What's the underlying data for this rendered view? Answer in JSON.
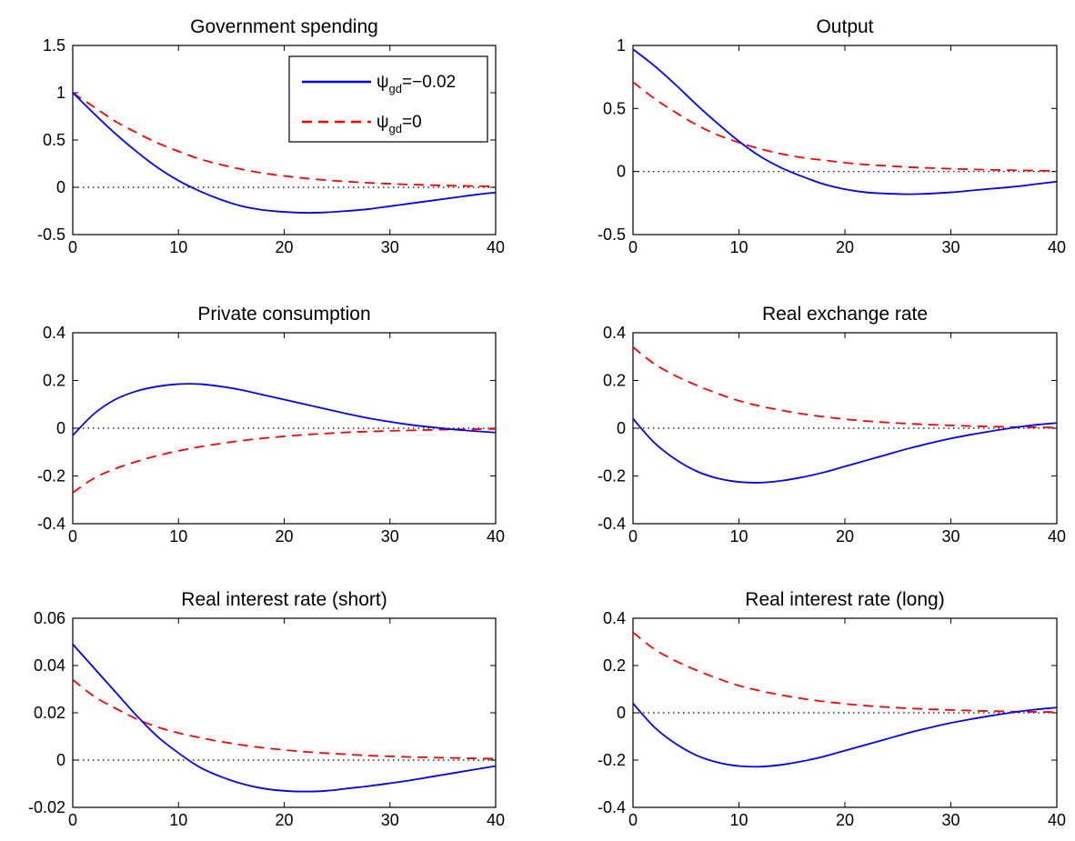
{
  "chart_data": [
    {
      "type": "line",
      "title": "Government spending",
      "xlim": [
        0,
        40
      ],
      "ylim": [
        -0.5,
        1.5
      ],
      "xticks": [
        "0",
        "10",
        "20",
        "30",
        "40"
      ],
      "yticks": [
        "-0.5",
        "0",
        "0.5",
        "1",
        "1.5"
      ],
      "x": [
        0,
        2,
        4,
        6,
        8,
        10,
        12,
        14,
        16,
        18,
        20,
        22,
        24,
        26,
        28,
        30,
        32,
        34,
        36,
        38,
        40
      ],
      "zero_line": true,
      "legend": {
        "position": "top-right"
      },
      "series": [
        {
          "legend_main": "ψ",
          "legend_sub": "gd",
          "legend_value": "=−0.02",
          "color": "#0000ff",
          "dash": "solid",
          "values": [
            1.0,
            0.78,
            0.57,
            0.38,
            0.21,
            0.07,
            -0.04,
            -0.13,
            -0.2,
            -0.24,
            -0.26,
            -0.27,
            -0.265,
            -0.25,
            -0.23,
            -0.2,
            -0.17,
            -0.14,
            -0.11,
            -0.08,
            -0.055
          ]
        },
        {
          "legend_main": "ψ",
          "legend_sub": "gd",
          "legend_value": "=0",
          "color": "#ff0000",
          "dash": "dashed",
          "values": [
            1.0,
            0.85,
            0.7,
            0.58,
            0.47,
            0.38,
            0.3,
            0.24,
            0.19,
            0.15,
            0.12,
            0.095,
            0.075,
            0.06,
            0.047,
            0.037,
            0.029,
            0.022,
            0.017,
            0.013,
            0.01
          ]
        }
      ]
    },
    {
      "type": "line",
      "title": "Output",
      "xlim": [
        0,
        40
      ],
      "ylim": [
        -0.5,
        1
      ],
      "xticks": [
        "0",
        "10",
        "20",
        "30",
        "40"
      ],
      "yticks": [
        "-0.5",
        "0",
        "0.5",
        "1"
      ],
      "x": [
        0,
        2,
        4,
        6,
        8,
        10,
        12,
        14,
        16,
        18,
        20,
        22,
        24,
        26,
        28,
        30,
        32,
        34,
        36,
        38,
        40
      ],
      "zero_line": true,
      "series": [
        {
          "color": "#0000ff",
          "dash": "solid",
          "values": [
            0.97,
            0.84,
            0.69,
            0.53,
            0.38,
            0.24,
            0.12,
            0.03,
            -0.04,
            -0.1,
            -0.14,
            -0.165,
            -0.175,
            -0.18,
            -0.175,
            -0.165,
            -0.15,
            -0.135,
            -0.12,
            -0.1,
            -0.08
          ]
        },
        {
          "color": "#ff0000",
          "dash": "dashed",
          "values": [
            0.71,
            0.58,
            0.47,
            0.37,
            0.29,
            0.23,
            0.18,
            0.14,
            0.11,
            0.09,
            0.07,
            0.055,
            0.045,
            0.035,
            0.028,
            0.022,
            0.017,
            0.013,
            0.01,
            0.007,
            0.005
          ]
        }
      ]
    },
    {
      "type": "line",
      "title": "Private consumption",
      "xlim": [
        0,
        40
      ],
      "ylim": [
        -0.4,
        0.4
      ],
      "xticks": [
        "0",
        "10",
        "20",
        "30",
        "40"
      ],
      "yticks": [
        "-0.4",
        "-0.2",
        "0",
        "0.2",
        "0.4"
      ],
      "x": [
        0,
        2,
        4,
        6,
        8,
        10,
        12,
        14,
        16,
        18,
        20,
        22,
        24,
        26,
        28,
        30,
        32,
        34,
        36,
        38,
        40
      ],
      "zero_line": true,
      "series": [
        {
          "color": "#0000ff",
          "dash": "solid",
          "values": [
            -0.03,
            0.06,
            0.12,
            0.155,
            0.175,
            0.185,
            0.185,
            0.175,
            0.16,
            0.14,
            0.12,
            0.1,
            0.08,
            0.06,
            0.042,
            0.027,
            0.014,
            0.004,
            -0.005,
            -0.012,
            -0.018
          ]
        },
        {
          "color": "#ff0000",
          "dash": "dashed",
          "values": [
            -0.27,
            -0.21,
            -0.17,
            -0.14,
            -0.115,
            -0.095,
            -0.078,
            -0.064,
            -0.052,
            -0.042,
            -0.034,
            -0.027,
            -0.022,
            -0.017,
            -0.014,
            -0.011,
            -0.009,
            -0.007,
            -0.005,
            -0.004,
            -0.003
          ]
        }
      ]
    },
    {
      "type": "line",
      "title": "Real exchange rate",
      "xlim": [
        0,
        40
      ],
      "ylim": [
        -0.4,
        0.4
      ],
      "xticks": [
        "0",
        "10",
        "20",
        "30",
        "40"
      ],
      "yticks": [
        "-0.4",
        "-0.2",
        "0",
        "0.2",
        "0.4"
      ],
      "x": [
        0,
        2,
        4,
        6,
        8,
        10,
        12,
        14,
        16,
        18,
        20,
        22,
        24,
        26,
        28,
        30,
        32,
        34,
        36,
        38,
        40
      ],
      "zero_line": true,
      "series": [
        {
          "color": "#0000ff",
          "dash": "solid",
          "values": [
            0.04,
            -0.06,
            -0.13,
            -0.18,
            -0.21,
            -0.225,
            -0.228,
            -0.22,
            -0.205,
            -0.185,
            -0.16,
            -0.135,
            -0.11,
            -0.085,
            -0.063,
            -0.043,
            -0.026,
            -0.011,
            0.003,
            0.014,
            0.022
          ]
        },
        {
          "color": "#ff0000",
          "dash": "dashed",
          "values": [
            0.34,
            0.27,
            0.22,
            0.18,
            0.145,
            0.115,
            0.093,
            0.075,
            0.06,
            0.048,
            0.038,
            0.03,
            0.024,
            0.019,
            0.015,
            0.012,
            0.009,
            0.007,
            0.005,
            0.004,
            0.003
          ]
        }
      ]
    },
    {
      "type": "line",
      "title": "Real interest rate (short)",
      "xlim": [
        0,
        40
      ],
      "ylim": [
        -0.02,
        0.06
      ],
      "xticks": [
        "0",
        "10",
        "20",
        "30",
        "40"
      ],
      "yticks": [
        "-0.02",
        "0",
        "0.02",
        "0.04",
        "0.06"
      ],
      "x": [
        0,
        2,
        4,
        6,
        8,
        10,
        12,
        14,
        16,
        18,
        20,
        22,
        24,
        26,
        28,
        30,
        32,
        34,
        36,
        38,
        40
      ],
      "zero_line": true,
      "series": [
        {
          "color": "#0000ff",
          "dash": "solid",
          "values": [
            0.049,
            0.039,
            0.029,
            0.019,
            0.01,
            0.003,
            -0.003,
            -0.007,
            -0.01,
            -0.012,
            -0.013,
            -0.0133,
            -0.013,
            -0.012,
            -0.011,
            -0.0098,
            -0.0085,
            -0.007,
            -0.0055,
            -0.004,
            -0.0025
          ]
        },
        {
          "color": "#ff0000",
          "dash": "dashed",
          "values": [
            0.034,
            0.027,
            0.022,
            0.0175,
            0.014,
            0.0115,
            0.0095,
            0.0078,
            0.0064,
            0.0052,
            0.0043,
            0.0035,
            0.0029,
            0.0024,
            0.0019,
            0.0016,
            0.0013,
            0.0011,
            0.0009,
            0.0007,
            0.0006
          ]
        }
      ]
    },
    {
      "type": "line",
      "title": "Real interest rate (long)",
      "xlim": [
        0,
        40
      ],
      "ylim": [
        -0.4,
        0.4
      ],
      "xticks": [
        "0",
        "10",
        "20",
        "30",
        "40"
      ],
      "yticks": [
        "-0.4",
        "-0.2",
        "0",
        "0.2",
        "0.4"
      ],
      "x": [
        0,
        2,
        4,
        6,
        8,
        10,
        12,
        14,
        16,
        18,
        20,
        22,
        24,
        26,
        28,
        30,
        32,
        34,
        36,
        38,
        40
      ],
      "zero_line": true,
      "series": [
        {
          "color": "#0000ff",
          "dash": "solid",
          "values": [
            0.04,
            -0.06,
            -0.13,
            -0.18,
            -0.21,
            -0.225,
            -0.228,
            -0.22,
            -0.205,
            -0.185,
            -0.16,
            -0.135,
            -0.11,
            -0.085,
            -0.063,
            -0.043,
            -0.026,
            -0.011,
            0.003,
            0.014,
            0.022
          ]
        },
        {
          "color": "#ff0000",
          "dash": "dashed",
          "values": [
            0.34,
            0.27,
            0.22,
            0.18,
            0.145,
            0.115,
            0.093,
            0.075,
            0.06,
            0.048,
            0.038,
            0.03,
            0.024,
            0.019,
            0.015,
            0.012,
            0.009,
            0.007,
            0.005,
            0.004,
            0.003
          ]
        }
      ]
    }
  ]
}
